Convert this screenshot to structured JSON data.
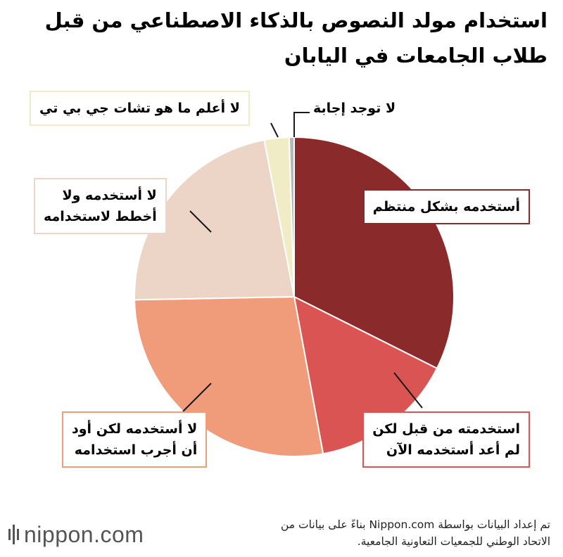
{
  "title": "استخدام مولد النصوص بالذكاء الاصطناعي من قبل طلاب الجامعات في اليابان",
  "chart_data": {
    "type": "pie",
    "slices": [
      {
        "label": "أستخدمه بشكل منتظم",
        "value": 32.4,
        "color": "#8b2a2b"
      },
      {
        "label": "استخدمته من قبل لكن لم أعد أستخدمه الآن",
        "value": 14.7,
        "color": "#d95453"
      },
      {
        "label": "لا أستخدمه لكن أود أن أجرب استخدامه",
        "value": 27.6,
        "color": "#f09c7a"
      },
      {
        "label": "لا أستخدمه ولا أخطط لاستخدامه",
        "value": 22.3,
        "color": "#ecd5c6"
      },
      {
        "label": "لا أعلم ما هو تشات جي بي تي",
        "value": 2.5,
        "color": "#f0ecc6"
      },
      {
        "label": "لا توجد إجابة",
        "value": 0.5,
        "color": "#b7b7b7"
      }
    ]
  },
  "labels": {
    "regular": [
      "أستخدمه بشكل منتظم"
    ],
    "used_before": [
      "استخدمته من قبل لكن",
      "لم أعد أستخدمه الآن"
    ],
    "want_to_try": [
      "لا أستخدمه لكن أود",
      "أن أجرب استخدامه"
    ],
    "no_plan": [
      "لا أستخدمه ولا",
      "أخطط لاستخدامه"
    ],
    "dont_know": [
      "لا أعلم ما هو تشات جي بي تي"
    ],
    "no_answer": [
      "لا توجد إجابة"
    ]
  },
  "source": [
    "تم إعداد البيانات بواسطة Nippon.com بناءً على بيانات من",
    "الاتحاد الوطني للجمعيات التعاونية الجامعية."
  ],
  "logo": "nippon.com"
}
